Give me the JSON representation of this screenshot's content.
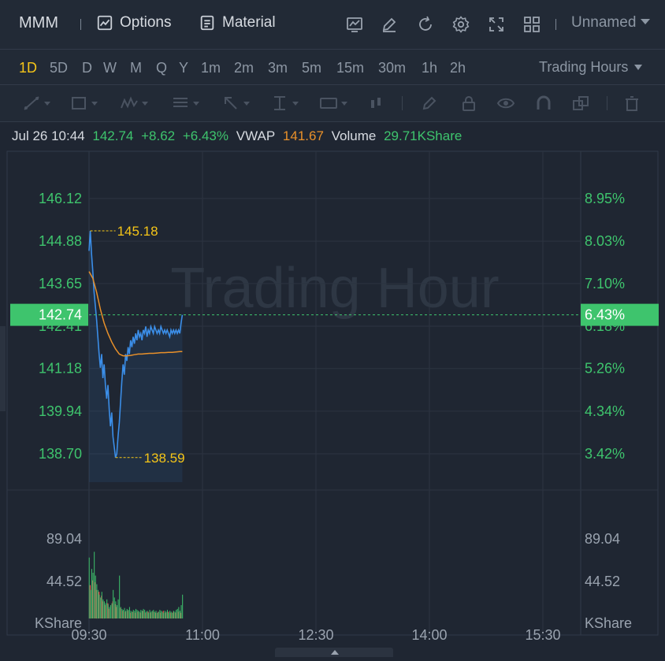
{
  "toolbar": {
    "symbol": "MMM",
    "options_label": "Options",
    "material_label": "Material",
    "layout_name": "Unnamed"
  },
  "periods": [
    "1D",
    "5D",
    "D",
    "W",
    "M",
    "Q",
    "Y",
    "1m",
    "2m",
    "3m",
    "5m",
    "15m",
    "30m",
    "1h",
    "2h"
  ],
  "active_period": "1D",
  "trading_hours_label": "Trading Hours",
  "info": {
    "datetime": "Jul 26 10:44",
    "price": "142.74",
    "change": "+8.62",
    "change_pct": "+6.43%",
    "vwap_label": "VWAP",
    "vwap": "141.67",
    "volume_label": "Volume",
    "volume": "29.71KShare"
  },
  "colors": {
    "up": "#3ec46d",
    "down": "#e04b4b",
    "price_line": "#3b8ee8",
    "vwap_line": "#e8902a",
    "accent": "#f5c518",
    "background": "#1f2632"
  },
  "icons": [
    "chart-icon",
    "edit-icon",
    "refresh-icon",
    "gear-icon",
    "fullscreen-icon",
    "layout-icon"
  ],
  "chart_data": {
    "type": "line",
    "watermark": "Trading Hour",
    "x_ticks": [
      "09:30",
      "11:00",
      "12:30",
      "14:00",
      "15:30"
    ],
    "y_ticks": [
      "146.12",
      "144.88",
      "143.65",
      "142.41",
      "141.18",
      "139.94",
      "138.70"
    ],
    "pct_ticks": [
      "8.95%",
      "8.03%",
      "7.10%",
      "6.18%",
      "5.26%",
      "4.34%",
      "3.42%"
    ],
    "current_price": "142.74",
    "current_pct": "6.43%",
    "high_label": "145.18",
    "low_label": "138.59",
    "volume_ticks": [
      "89.04",
      "44.52"
    ],
    "volume_unit": "KShare",
    "price_range": [
      138.7,
      146.12
    ],
    "minutes_range": [
      0,
      390
    ],
    "price_minutes": [
      0,
      1,
      2,
      3,
      4,
      5,
      6,
      7,
      8,
      9,
      10,
      11,
      12,
      13,
      14,
      15,
      16,
      17,
      18,
      19,
      20,
      21,
      22,
      23,
      24,
      25,
      26,
      27,
      28,
      29,
      30,
      31,
      32,
      33,
      34,
      35,
      36,
      37,
      38,
      39,
      40,
      41,
      42,
      43,
      44,
      45,
      46,
      47,
      48,
      49,
      50,
      51,
      52,
      53,
      54,
      55,
      56,
      57,
      58,
      59,
      60,
      61,
      62,
      63,
      64,
      65,
      66,
      67,
      68,
      69,
      70,
      71,
      72,
      73,
      74
    ],
    "price": [
      144.6,
      145.18,
      144.5,
      144.0,
      143.4,
      143.0,
      142.6,
      142.1,
      141.6,
      141.2,
      141.6,
      140.9,
      141.3,
      140.7,
      140.3,
      140.7,
      140.0,
      139.5,
      139.9,
      139.2,
      138.9,
      138.59,
      138.7,
      139.2,
      139.6,
      140.2,
      140.8,
      141.3,
      141.0,
      141.6,
      141.4,
      141.8,
      141.6,
      142.0,
      141.8,
      142.1,
      141.9,
      142.2,
      142.0,
      142.3,
      142.1,
      142.2,
      142.0,
      142.3,
      142.2,
      142.4,
      142.1,
      142.3,
      142.2,
      142.4,
      142.3,
      142.2,
      142.4,
      142.3,
      142.2,
      142.3,
      142.2,
      142.4,
      142.3,
      142.2,
      142.3,
      142.2,
      142.3,
      142.2,
      142.1,
      142.3,
      142.2,
      142.3,
      142.2,
      142.3,
      142.2,
      142.3,
      142.2,
      142.5,
      142.74
    ],
    "vwap_minutes": [
      0,
      3,
      6,
      9,
      12,
      15,
      18,
      21,
      24,
      27,
      30,
      33,
      36,
      39,
      42,
      45,
      48,
      51,
      54,
      57,
      60,
      63,
      66,
      69,
      72,
      74
    ],
    "vwap": [
      144.0,
      143.8,
      143.4,
      142.9,
      142.5,
      142.2,
      141.95,
      141.75,
      141.6,
      141.55,
      141.55,
      141.56,
      141.58,
      141.6,
      141.6,
      141.61,
      141.62,
      141.62,
      141.63,
      141.64,
      141.64,
      141.65,
      141.65,
      141.66,
      141.67,
      141.67
    ],
    "volume_max": 120,
    "volume_up": [
      64,
      30,
      52,
      48,
      70,
      45,
      36,
      30,
      25,
      22,
      28,
      20,
      18,
      16,
      20,
      15,
      12,
      14,
      16,
      30,
      22,
      18,
      14,
      20,
      45,
      12,
      10,
      9,
      11,
      8,
      10,
      9,
      12,
      8,
      7,
      9,
      8,
      10,
      9,
      8,
      7,
      9,
      8,
      10,
      9,
      7,
      8,
      6,
      9,
      7,
      8,
      9,
      7,
      8,
      6,
      7,
      9,
      8,
      7,
      6,
      8,
      7,
      9,
      6,
      8,
      7,
      6,
      8,
      7,
      9,
      10,
      12,
      8,
      14,
      25
    ],
    "volume_down": [
      0,
      35,
      0,
      40,
      0,
      38,
      30,
      0,
      28,
      0,
      24,
      18,
      0,
      14,
      0,
      16,
      10,
      0,
      0,
      18,
      0,
      15,
      12,
      0,
      0,
      11,
      0,
      8,
      0,
      7,
      0,
      8,
      0,
      6,
      0,
      7,
      0,
      6,
      0,
      7,
      0,
      6,
      0,
      8,
      0,
      6,
      0,
      7,
      0,
      6,
      0,
      7,
      0,
      6,
      0,
      7,
      0,
      6,
      0,
      8,
      0,
      6,
      0,
      7,
      0,
      6,
      0,
      7,
      0,
      6,
      0,
      7,
      0,
      6,
      0
    ]
  }
}
